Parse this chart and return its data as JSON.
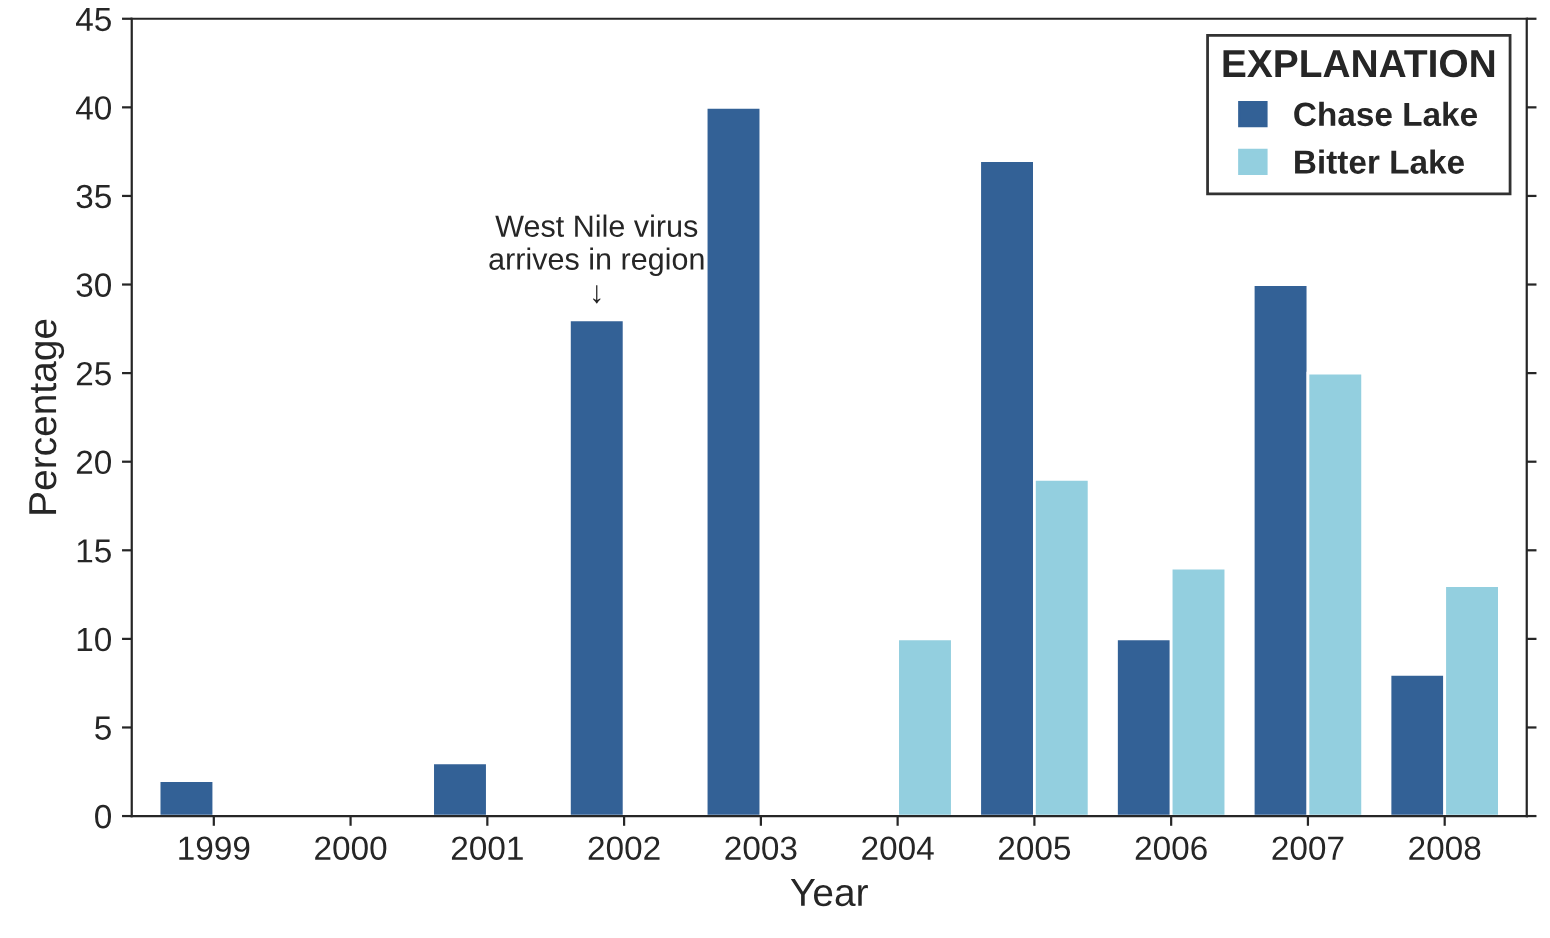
{
  "chart_data": {
    "type": "bar",
    "xlabel": "Year",
    "ylabel": "Percentage",
    "legend_title": "EXPLANATION",
    "legend": "top right",
    "grid": false,
    "categories": [
      "1999",
      "2000",
      "2001",
      "2002",
      "2003",
      "2004",
      "2005",
      "2006",
      "2007",
      "2008"
    ],
    "series": [
      {
        "name": "Chase Lake",
        "color": "#336196",
        "values": [
          2,
          null,
          3,
          28,
          40,
          null,
          37,
          10,
          30,
          8
        ]
      },
      {
        "name": "Bitter Lake",
        "color": "#93cfdf",
        "values": [
          null,
          null,
          null,
          null,
          null,
          10,
          19,
          14,
          25,
          13
        ]
      }
    ],
    "ylim": [
      0,
      45
    ],
    "yticks": [
      0,
      5,
      10,
      15,
      20,
      25,
      30,
      35,
      40,
      45
    ],
    "annotations": [
      {
        "text": "West Nile virus\narrives in region\n↓",
        "x": "2002",
        "y": 28
      }
    ]
  }
}
